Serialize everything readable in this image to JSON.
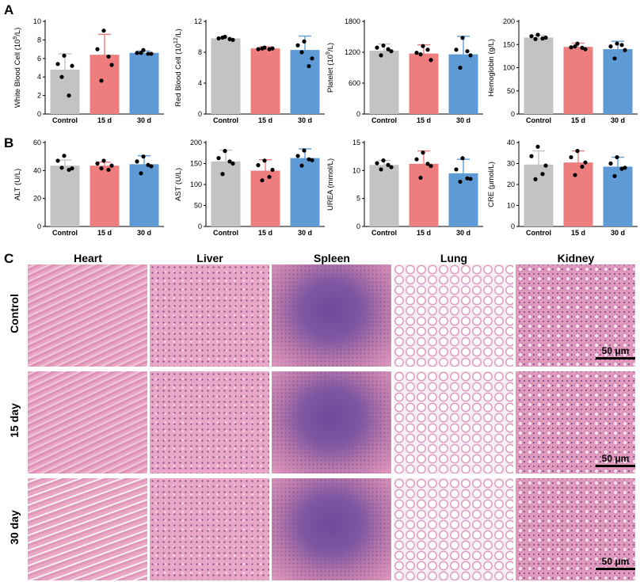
{
  "panels": {
    "A": "A",
    "B": "B",
    "C": "C"
  },
  "colors": {
    "control": "#c3c3c3",
    "d15": "#ee7e7e",
    "d30": "#5e9bd6",
    "he_pink": "#e59cc0",
    "he_purple": "#8a5aa7"
  },
  "chart_data": [
    {
      "type": "bar",
      "panel": "A",
      "categories": [
        "Control",
        "15 d",
        "30 d"
      ],
      "values": [
        4.8,
        6.4,
        6.6
      ],
      "errors": [
        1.7,
        2.2,
        0.2
      ],
      "points": [
        [
          6.3,
          5.4,
          5.2,
          4.0,
          2.0
        ],
        [
          9.0,
          7.0,
          5.3,
          3.6,
          6.2
        ],
        [
          6.9,
          6.6,
          6.5,
          6.6,
          6.5
        ]
      ],
      "ylabel_parts": [
        "White Blood Cell (10",
        "9",
        "/L)"
      ],
      "ylim": [
        0,
        10
      ],
      "ticks": [
        0,
        2,
        4,
        6,
        8,
        10
      ]
    },
    {
      "type": "bar",
      "panel": "A",
      "categories": [
        "Control",
        "15 d",
        "30 d"
      ],
      "values": [
        9.8,
        8.5,
        8.3
      ],
      "errors": [
        0.15,
        0.2,
        1.8
      ],
      "points": [
        [
          10.0,
          9.8,
          9.6,
          9.9,
          9.7
        ],
        [
          8.6,
          8.4,
          8.5,
          8.5,
          8.4
        ],
        [
          9.4,
          8.9,
          7.2,
          8.0,
          6.2
        ]
      ],
      "ylabel_parts": [
        "Red Blood Cell (10",
        "12",
        "/L)"
      ],
      "ylim": [
        0,
        12
      ],
      "ticks": [
        0,
        4,
        8,
        12
      ]
    },
    {
      "type": "bar",
      "panel": "A",
      "categories": [
        "Control",
        "15 d",
        "30 d"
      ],
      "values": [
        1230,
        1175,
        1160
      ],
      "errors": [
        130,
        170,
        350
      ],
      "points": [
        [
          1330,
          1290,
          1220,
          1140,
          1260
        ],
        [
          1320,
          1190,
          1050,
          1160,
          1250
        ],
        [
          1480,
          1250,
          1140,
          900,
          1220
        ]
      ],
      "ylabel_parts": [
        "Platelet (10",
        "9",
        "/L)"
      ],
      "ylim": [
        0,
        1800
      ],
      "ticks": [
        0,
        600,
        1200,
        1800
      ]
    },
    {
      "type": "bar",
      "panel": "A",
      "categories": [
        "Control",
        "15 d",
        "30 d"
      ],
      "values": [
        165,
        145,
        140
      ],
      "errors": [
        5,
        8,
        17
      ],
      "points": [
        [
          171,
          168,
          165,
          162,
          163
        ],
        [
          152,
          144,
          140,
          146,
          143
        ],
        [
          152,
          146,
          138,
          120,
          149
        ]
      ],
      "ylabel_parts": [
        "Hemoglobin (g/L)",
        "",
        ""
      ],
      "ylim": [
        0,
        200
      ],
      "ticks": [
        0,
        50,
        100,
        150,
        200
      ]
    },
    {
      "type": "bar",
      "panel": "B",
      "categories": [
        "Control",
        "15 d",
        "30 d"
      ],
      "values": [
        43.5,
        43.5,
        44.5
      ],
      "errors": [
        4,
        2.5,
        6
      ],
      "points": [
        [
          50.5,
          47.0,
          41.5,
          42.0,
          40.5
        ],
        [
          47.0,
          45.0,
          43.5,
          41.5,
          40.5
        ],
        [
          50.0,
          46.5,
          43.0,
          38.0,
          44.0
        ]
      ],
      "ylabel_parts": [
        "ALT (U/L)",
        "",
        ""
      ],
      "ylim": [
        0,
        60
      ],
      "ticks": [
        0,
        20,
        40,
        60
      ]
    },
    {
      "type": "bar",
      "panel": "B",
      "categories": [
        "Control",
        "15 d",
        "30 d"
      ],
      "values": [
        155,
        133,
        163
      ],
      "errors": [
        27,
        26,
        22
      ],
      "points": [
        [
          180,
          163,
          150,
          125,
          155
        ],
        [
          157,
          146,
          135,
          110,
          118
        ],
        [
          181,
          168,
          158,
          145,
          160
        ]
      ],
      "ylabel_parts": [
        "AST (U/L)",
        "",
        ""
      ],
      "ylim": [
        0,
        200
      ],
      "ticks": [
        0,
        50,
        100,
        150,
        200
      ]
    },
    {
      "type": "bar",
      "panel": "B",
      "categories": [
        "Control",
        "15 d",
        "30 d"
      ],
      "values": [
        11.0,
        11.2,
        9.5
      ],
      "errors": [
        0.8,
        2.3,
        2.5
      ],
      "points": [
        [
          11.8,
          11.3,
          10.6,
          10.2,
          11.0
        ],
        [
          13.2,
          12.0,
          10.8,
          8.7,
          11.2
        ],
        [
          12.2,
          10.2,
          8.5,
          8.0,
          8.6
        ]
      ],
      "ylabel_parts": [
        "UREA (mmol/L)",
        "",
        ""
      ],
      "ylim": [
        0,
        15
      ],
      "ticks": [
        0,
        5,
        10,
        15
      ]
    },
    {
      "type": "bar",
      "panel": "B",
      "categories": [
        "Control",
        "15 d",
        "30 d"
      ],
      "values": [
        29.5,
        30.5,
        28.5
      ],
      "errors": [
        6.5,
        5.5,
        4.5
      ],
      "points": [
        [
          38.0,
          33.5,
          29.0,
          22.5,
          25.0
        ],
        [
          36.0,
          33.0,
          30.5,
          24.5,
          28.5
        ],
        [
          33.0,
          30.0,
          28.0,
          24.0,
          27.5
        ]
      ],
      "ylabel_parts": [
        "CRE (μmol/L)",
        "",
        ""
      ],
      "ylim": [
        0,
        40
      ],
      "ticks": [
        0,
        10,
        20,
        30,
        40
      ]
    }
  ],
  "histology": {
    "columns": [
      "Heart",
      "Liver",
      "Spleen",
      "Lung",
      "Kidney"
    ],
    "rows": [
      "Control",
      "15 day",
      "30 day"
    ],
    "scale_bar": "50 μm"
  }
}
